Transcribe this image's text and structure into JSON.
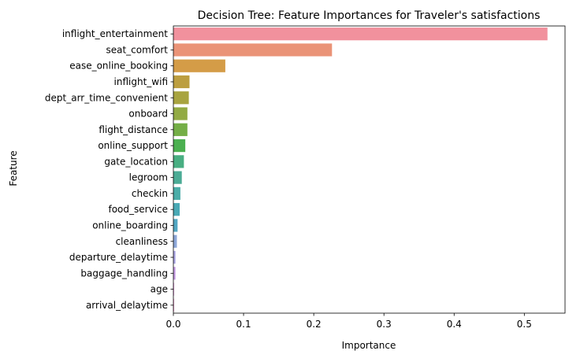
{
  "chart_data": {
    "type": "bar",
    "orientation": "horizontal",
    "title": "Decision Tree: Feature Importances for Traveler's satisfactions",
    "xlabel": "Importance",
    "ylabel": "Feature",
    "xlim": [
      0,
      0.558
    ],
    "xticks": [
      0.0,
      0.1,
      0.2,
      0.3,
      0.4,
      0.5
    ],
    "xtick_labels": [
      "0.0",
      "0.1",
      "0.2",
      "0.3",
      "0.4",
      "0.5"
    ],
    "grid": false,
    "legend": "none",
    "categories": [
      "inflight_entertainment",
      "seat_comfort",
      "ease_online_booking",
      "inflight_wifi",
      "dept_arr_time_convenient",
      "onboard",
      "flight_distance",
      "online_support",
      "gate_location",
      "legroom",
      "checkin",
      "food_service",
      "online_boarding",
      "cleanliness",
      "departure_delaytime",
      "baggage_handling",
      "age",
      "arrival_delaytime"
    ],
    "values": [
      0.533,
      0.226,
      0.074,
      0.023,
      0.022,
      0.02,
      0.02,
      0.017,
      0.015,
      0.012,
      0.01,
      0.009,
      0.006,
      0.005,
      0.003,
      0.003,
      0.001,
      0.001
    ],
    "colors": [
      "#f1919d",
      "#ea9377",
      "#d49c47",
      "#bc9e40",
      "#a8a440",
      "#92aa43",
      "#74ae46",
      "#4bb050",
      "#49ae82",
      "#4bab95",
      "#4bada8",
      "#4aa9b5",
      "#52a7c2",
      "#8da7d8",
      "#a9a4e2",
      "#c49ae2",
      "#df8ad9",
      "#e88dc4"
    ]
  }
}
